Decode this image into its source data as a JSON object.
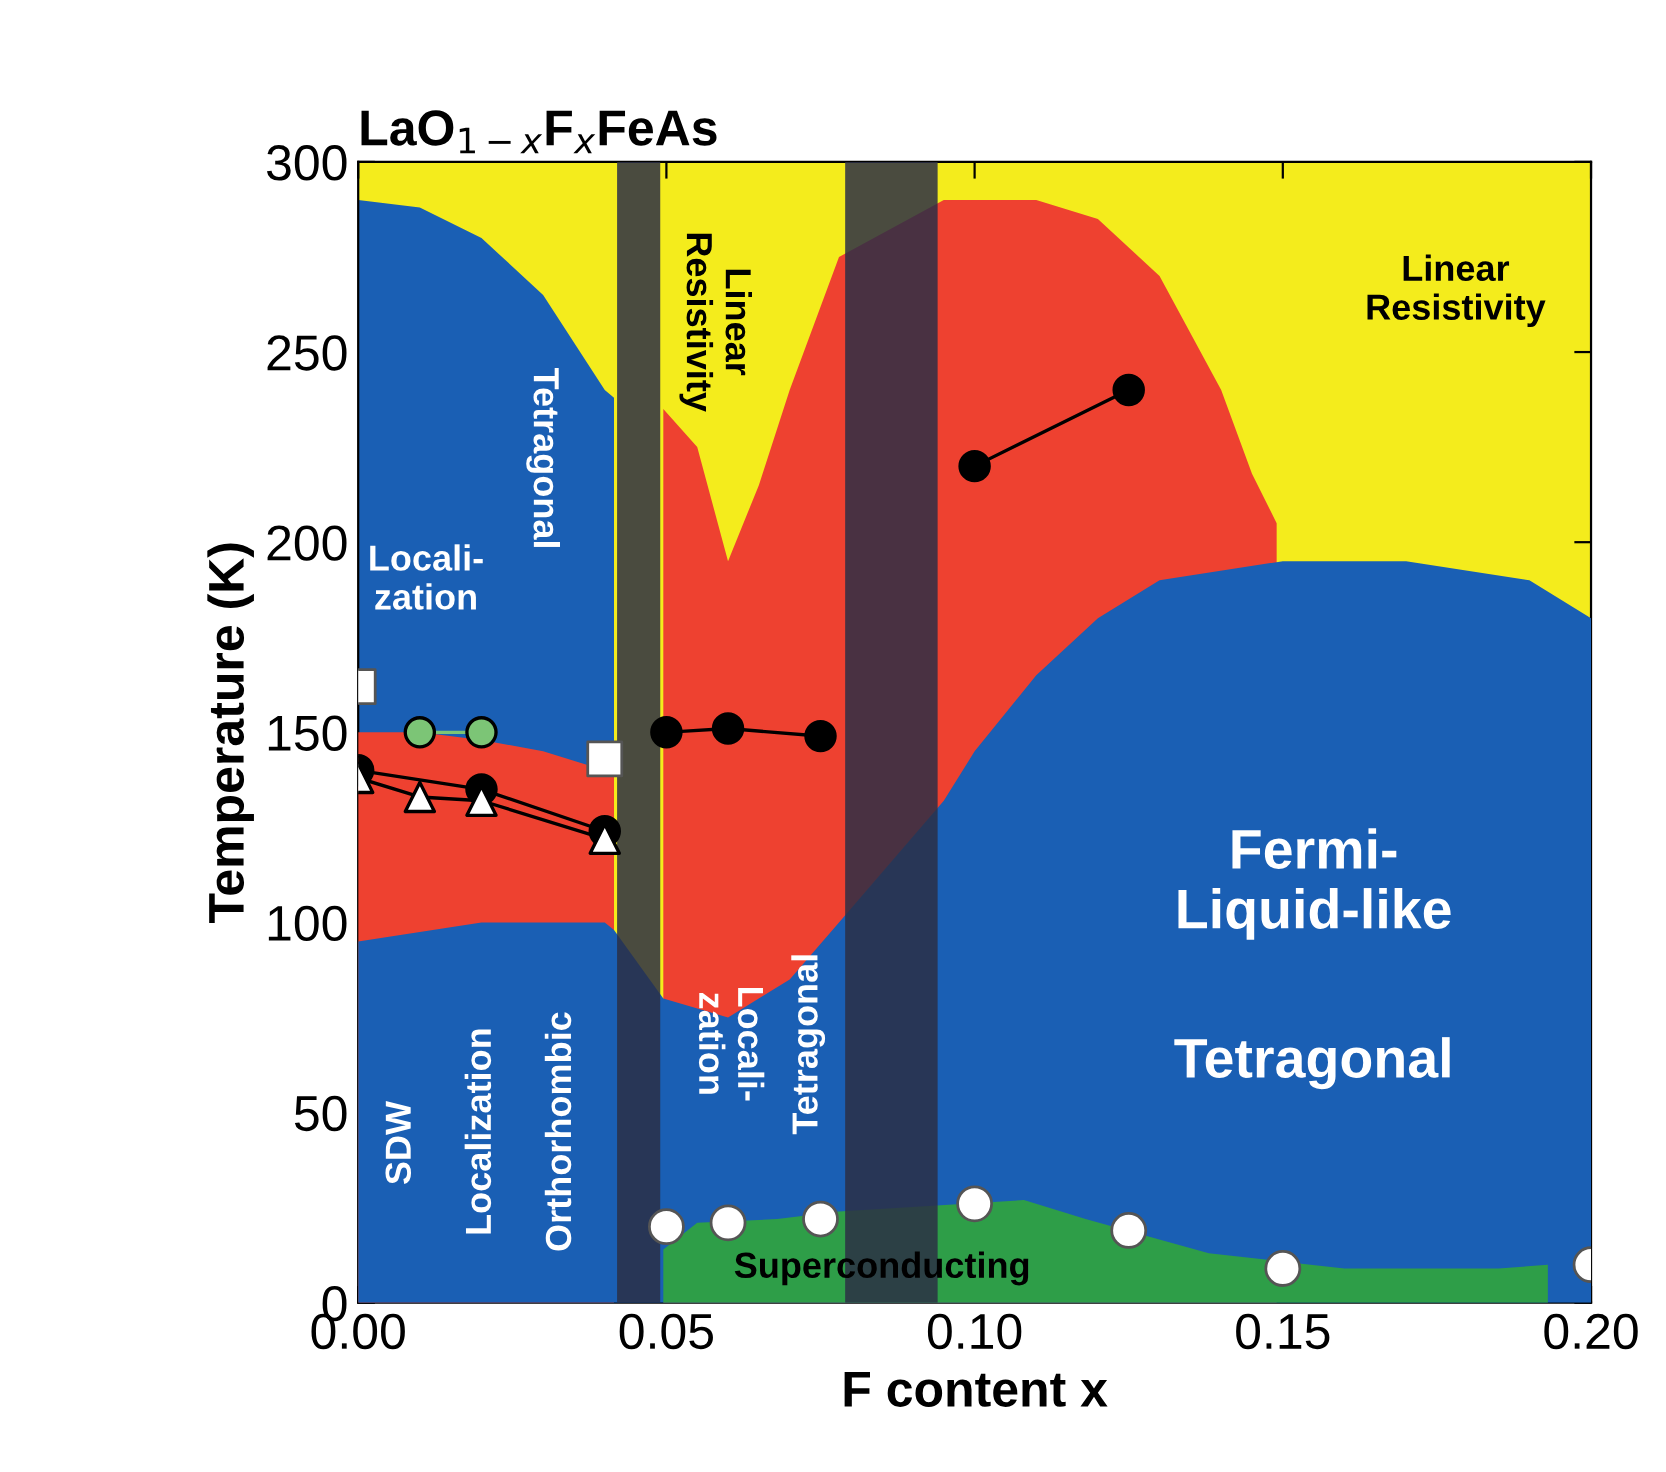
{
  "chart_data": {
    "type": "area",
    "title": "LaO$_{1−x}$F$_{x}$FeAs",
    "xlabel": "F content x",
    "ylabel": "Temperature (K)",
    "xlim": [
      0,
      0.2
    ],
    "ylim": [
      0,
      300
    ],
    "xticks": [
      {
        "value": 0,
        "label": "0.00"
      },
      {
        "value": 0.05,
        "label": "0.05"
      },
      {
        "value": 0.1,
        "label": "0.10"
      },
      {
        "value": 0.15,
        "label": "0.15"
      },
      {
        "value": 0.2,
        "label": "0.20"
      }
    ],
    "yticks": [
      0,
      50,
      100,
      150,
      200,
      250,
      300
    ],
    "grid": false,
    "legend": false,
    "series": [
      {
        "color": "#f4ec1c",
        "x": [
          0,
          0.2
        ],
        "values": [
          300,
          300
        ]
      },
      {
        "color": "#1a5fb4",
        "x": [
          0,
          0.01,
          0.02,
          0.03,
          0.04,
          0.0415
        ],
        "values": [
          290,
          288,
          280,
          265,
          240,
          238
        ]
      },
      {
        "color": "#ee4130",
        "x": [
          0,
          0.01,
          0.02,
          0.03,
          0.04,
          0.0415
        ],
        "values": [
          150,
          150,
          148,
          145,
          140,
          139
        ]
      },
      {
        "color": "#ee4130",
        "x": [
          0.0495,
          0.055,
          0.06,
          0.065,
          0.07,
          0.078,
          0.095,
          0.1,
          0.11,
          0.12,
          0.13,
          0.14,
          0.145,
          0.149
        ],
        "values": [
          235,
          225,
          195,
          215,
          240,
          275,
          290,
          290,
          290,
          285,
          270,
          240,
          218,
          205
        ]
      },
      {
        "color": "#1a5fb4",
        "x": [
          0,
          0.02,
          0.04,
          0.0415,
          0.0495,
          0.06,
          0.07,
          0.078,
          0.095,
          0.1,
          0.11,
          0.12,
          0.13,
          0.15,
          0.17,
          0.19,
          0.2
        ],
        "values": [
          95,
          100,
          100,
          98,
          80,
          75,
          85,
          100,
          132,
          145,
          165,
          180,
          190,
          195,
          195,
          190,
          180
        ]
      },
      {
        "color": "#2e9e48",
        "x": [
          0.0495,
          0.055,
          0.068,
          0.078,
          0.108,
          0.118,
          0.138,
          0.16,
          0.185,
          0.193
        ],
        "values": [
          14,
          21,
          22,
          24,
          27,
          22,
          13,
          9,
          9,
          10
        ]
      },
      {
        "type": "line",
        "color": "#000000",
        "marker": "circle",
        "x": [
          0.05,
          0.06,
          0.075
        ],
        "values": [
          150,
          151,
          149
        ]
      },
      {
        "type": "line",
        "color": "#000000",
        "marker": "circle",
        "x": [
          0.1,
          0.125
        ],
        "values": [
          220,
          240
        ]
      },
      {
        "type": "line",
        "color": "#000000",
        "marker": "circle",
        "x": [
          0,
          0.02,
          0.04
        ],
        "values": [
          140,
          135,
          124
        ]
      },
      {
        "type": "line",
        "color": "#ffffff",
        "marker": "triangle",
        "x": [
          0,
          0.01,
          0.02,
          0.04
        ],
        "values": [
          138,
          133,
          132,
          122
        ]
      },
      {
        "type": "line",
        "color": "#7cc576",
        "marker": "circle",
        "x": [
          0.01,
          0.02
        ],
        "values": [
          150,
          150
        ]
      },
      {
        "type": "scatter",
        "color": "#ffffff",
        "marker": "square",
        "x": [
          0,
          0.04
        ],
        "values": [
          162,
          143
        ]
      },
      {
        "type": "scatter",
        "color": "#ffffff",
        "marker": "circle",
        "x": [
          0.05,
          0.06,
          0.075,
          0.1,
          0.125,
          0.15,
          0.2
        ],
        "values": [
          20,
          21,
          22,
          26,
          19,
          9,
          10
        ]
      }
    ],
    "bands": [
      {
        "axis": "x",
        "from": 0.042,
        "to": 0.049,
        "color": "#2b2f45"
      },
      {
        "axis": "x",
        "from": 0.079,
        "to": 0.094,
        "color": "#2b2f45"
      }
    ],
    "annotations": [
      "Locali-\nzation",
      "Tetragonal",
      "Linear\nResistivity",
      "Linear\nResistivity",
      "SDW",
      "Localization",
      "Orthorhombic",
      "Locali-\nzation",
      "Tetragonal",
      "Fermi-\nLiquid-like",
      "Tetragonal",
      "Superconducting"
    ]
  }
}
